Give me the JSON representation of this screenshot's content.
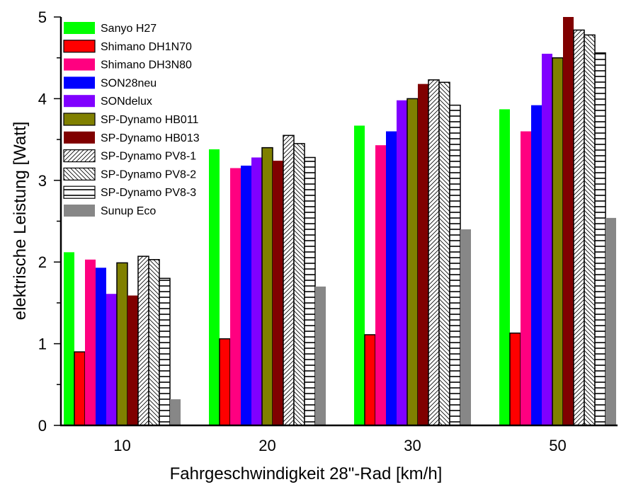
{
  "chart_data": {
    "type": "bar",
    "title": "",
    "xlabel": "Fahrgeschwindigkeit 28\"-Rad [km/h]",
    "ylabel": "elektrische Leistung [Watt]",
    "categories": [
      "10",
      "20",
      "30",
      "50"
    ],
    "ylim": [
      0,
      5
    ],
    "yticks": [
      "0",
      "1",
      "2",
      "3",
      "4",
      "5"
    ],
    "yminor_step": 0.5,
    "grid": false,
    "legend_position": "top-left",
    "series": [
      {
        "name": "Sanyo H27",
        "color": "#00ff00",
        "pattern": "solid",
        "border": false,
        "values": [
          2.12,
          3.38,
          3.67,
          3.87
        ]
      },
      {
        "name": "Shimano DH1N70",
        "color": "#ff0000",
        "pattern": "solid",
        "border": true,
        "values": [
          0.9,
          1.06,
          1.11,
          1.13
        ]
      },
      {
        "name": "Shimano DH3N80",
        "color": "#ff0080",
        "pattern": "solid",
        "border": false,
        "values": [
          2.03,
          3.15,
          3.43,
          3.6
        ]
      },
      {
        "name": "SON28neu",
        "color": "#0000ff",
        "pattern": "solid",
        "border": false,
        "values": [
          1.93,
          3.18,
          3.6,
          3.92
        ]
      },
      {
        "name": "SONdelux",
        "color": "#8000ff",
        "pattern": "solid",
        "border": false,
        "values": [
          1.61,
          3.28,
          3.98,
          4.55
        ]
      },
      {
        "name": "SP-Dynamo HB011",
        "color": "#808000",
        "pattern": "solid",
        "border": true,
        "values": [
          1.99,
          3.4,
          4.0,
          4.5
        ]
      },
      {
        "name": "SP-Dynamo HB013",
        "color": "#800000",
        "pattern": "solid",
        "border": false,
        "values": [
          1.59,
          3.24,
          4.18,
          5.0
        ]
      },
      {
        "name": "SP-Dynamo PV8-1",
        "color": "#ffffff",
        "pattern": "diag-up",
        "border": true,
        "values": [
          2.07,
          3.55,
          4.23,
          4.84
        ]
      },
      {
        "name": "SP-Dynamo PV8-2",
        "color": "#ffffff",
        "pattern": "diag-down",
        "border": true,
        "values": [
          2.03,
          3.45,
          4.2,
          4.78
        ]
      },
      {
        "name": "SP-Dynamo PV8-3",
        "color": "#ffffff",
        "pattern": "horizontal",
        "border": true,
        "values": [
          1.8,
          3.28,
          3.92,
          4.56
        ]
      },
      {
        "name": "Sunup Eco",
        "color": "#878787",
        "pattern": "solid",
        "border": false,
        "values": [
          0.32,
          1.7,
          2.4,
          2.54
        ]
      }
    ]
  }
}
